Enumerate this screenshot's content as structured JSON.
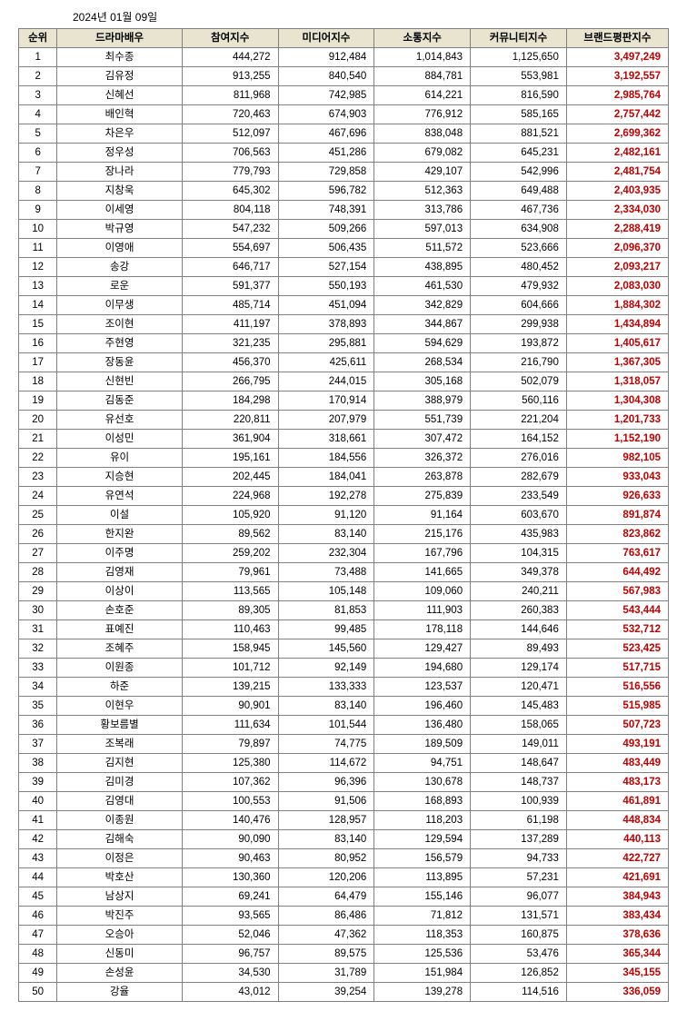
{
  "date": "2024년 01월 09일",
  "headers": {
    "rank": "순위",
    "name": "드라마배우",
    "col1": "참여지수",
    "col2": "미디어지수",
    "col3": "소통지수",
    "col4": "커뮤니티지수",
    "col5": "브랜드평판지수"
  },
  "rows": [
    {
      "rank": 1,
      "name": "최수종",
      "c1": "444,272",
      "c2": "912,484",
      "c3": "1,014,843",
      "c4": "1,125,650",
      "c5": "3,497,249"
    },
    {
      "rank": 2,
      "name": "김유정",
      "c1": "913,255",
      "c2": "840,540",
      "c3": "884,781",
      "c4": "553,981",
      "c5": "3,192,557"
    },
    {
      "rank": 3,
      "name": "신혜선",
      "c1": "811,968",
      "c2": "742,985",
      "c3": "614,221",
      "c4": "816,590",
      "c5": "2,985,764"
    },
    {
      "rank": 4,
      "name": "배인혁",
      "c1": "720,463",
      "c2": "674,903",
      "c3": "776,912",
      "c4": "585,165",
      "c5": "2,757,442"
    },
    {
      "rank": 5,
      "name": "차은우",
      "c1": "512,097",
      "c2": "467,696",
      "c3": "838,048",
      "c4": "881,521",
      "c5": "2,699,362"
    },
    {
      "rank": 6,
      "name": "정우성",
      "c1": "706,563",
      "c2": "451,286",
      "c3": "679,082",
      "c4": "645,231",
      "c5": "2,482,161"
    },
    {
      "rank": 7,
      "name": "장나라",
      "c1": "779,793",
      "c2": "729,858",
      "c3": "429,107",
      "c4": "542,996",
      "c5": "2,481,754"
    },
    {
      "rank": 8,
      "name": "지창욱",
      "c1": "645,302",
      "c2": "596,782",
      "c3": "512,363",
      "c4": "649,488",
      "c5": "2,403,935"
    },
    {
      "rank": 9,
      "name": "이세영",
      "c1": "804,118",
      "c2": "748,391",
      "c3": "313,786",
      "c4": "467,736",
      "c5": "2,334,030"
    },
    {
      "rank": 10,
      "name": "박규영",
      "c1": "547,232",
      "c2": "509,266",
      "c3": "597,013",
      "c4": "634,908",
      "c5": "2,288,419"
    },
    {
      "rank": 11,
      "name": "이영애",
      "c1": "554,697",
      "c2": "506,435",
      "c3": "511,572",
      "c4": "523,666",
      "c5": "2,096,370"
    },
    {
      "rank": 12,
      "name": "송강",
      "c1": "646,717",
      "c2": "527,154",
      "c3": "438,895",
      "c4": "480,452",
      "c5": "2,093,217"
    },
    {
      "rank": 13,
      "name": "로운",
      "c1": "591,377",
      "c2": "550,193",
      "c3": "461,530",
      "c4": "479,932",
      "c5": "2,083,030"
    },
    {
      "rank": 14,
      "name": "이무생",
      "c1": "485,714",
      "c2": "451,094",
      "c3": "342,829",
      "c4": "604,666",
      "c5": "1,884,302"
    },
    {
      "rank": 15,
      "name": "조이현",
      "c1": "411,197",
      "c2": "378,893",
      "c3": "344,867",
      "c4": "299,938",
      "c5": "1,434,894"
    },
    {
      "rank": 16,
      "name": "주현영",
      "c1": "321,235",
      "c2": "295,881",
      "c3": "594,629",
      "c4": "193,872",
      "c5": "1,405,617"
    },
    {
      "rank": 17,
      "name": "장동윤",
      "c1": "456,370",
      "c2": "425,611",
      "c3": "268,534",
      "c4": "216,790",
      "c5": "1,367,305"
    },
    {
      "rank": 18,
      "name": "신현빈",
      "c1": "266,795",
      "c2": "244,015",
      "c3": "305,168",
      "c4": "502,079",
      "c5": "1,318,057"
    },
    {
      "rank": 19,
      "name": "김동준",
      "c1": "184,298",
      "c2": "170,914",
      "c3": "388,979",
      "c4": "560,116",
      "c5": "1,304,308"
    },
    {
      "rank": 20,
      "name": "유선호",
      "c1": "220,811",
      "c2": "207,979",
      "c3": "551,739",
      "c4": "221,204",
      "c5": "1,201,733"
    },
    {
      "rank": 21,
      "name": "이성민",
      "c1": "361,904",
      "c2": "318,661",
      "c3": "307,472",
      "c4": "164,152",
      "c5": "1,152,190"
    },
    {
      "rank": 22,
      "name": "유이",
      "c1": "195,161",
      "c2": "184,556",
      "c3": "326,372",
      "c4": "276,016",
      "c5": "982,105"
    },
    {
      "rank": 23,
      "name": "지승현",
      "c1": "202,445",
      "c2": "184,041",
      "c3": "263,878",
      "c4": "282,679",
      "c5": "933,043"
    },
    {
      "rank": 24,
      "name": "유연석",
      "c1": "224,968",
      "c2": "192,278",
      "c3": "275,839",
      "c4": "233,549",
      "c5": "926,633"
    },
    {
      "rank": 25,
      "name": "이설",
      "c1": "105,920",
      "c2": "91,120",
      "c3": "91,164",
      "c4": "603,670",
      "c5": "891,874"
    },
    {
      "rank": 26,
      "name": "한지완",
      "c1": "89,562",
      "c2": "83,140",
      "c3": "215,176",
      "c4": "435,983",
      "c5": "823,862"
    },
    {
      "rank": 27,
      "name": "이주명",
      "c1": "259,202",
      "c2": "232,304",
      "c3": "167,796",
      "c4": "104,315",
      "c5": "763,617"
    },
    {
      "rank": 28,
      "name": "김영재",
      "c1": "79,961",
      "c2": "73,488",
      "c3": "141,665",
      "c4": "349,378",
      "c5": "644,492"
    },
    {
      "rank": 29,
      "name": "이상이",
      "c1": "113,565",
      "c2": "105,148",
      "c3": "109,060",
      "c4": "240,211",
      "c5": "567,983"
    },
    {
      "rank": 30,
      "name": "손호준",
      "c1": "89,305",
      "c2": "81,853",
      "c3": "111,903",
      "c4": "260,383",
      "c5": "543,444"
    },
    {
      "rank": 31,
      "name": "표예진",
      "c1": "110,463",
      "c2": "99,485",
      "c3": "178,118",
      "c4": "144,646",
      "c5": "532,712"
    },
    {
      "rank": 32,
      "name": "조혜주",
      "c1": "158,945",
      "c2": "145,560",
      "c3": "129,427",
      "c4": "89,493",
      "c5": "523,425"
    },
    {
      "rank": 33,
      "name": "이원종",
      "c1": "101,712",
      "c2": "92,149",
      "c3": "194,680",
      "c4": "129,174",
      "c5": "517,715"
    },
    {
      "rank": 34,
      "name": "하준",
      "c1": "139,215",
      "c2": "133,333",
      "c3": "123,537",
      "c4": "120,471",
      "c5": "516,556"
    },
    {
      "rank": 35,
      "name": "이현우",
      "c1": "90,901",
      "c2": "83,140",
      "c3": "196,460",
      "c4": "145,483",
      "c5": "515,985"
    },
    {
      "rank": 36,
      "name": "황보름별",
      "c1": "111,634",
      "c2": "101,544",
      "c3": "136,480",
      "c4": "158,065",
      "c5": "507,723"
    },
    {
      "rank": 37,
      "name": "조복래",
      "c1": "79,897",
      "c2": "74,775",
      "c3": "189,509",
      "c4": "149,011",
      "c5": "493,191"
    },
    {
      "rank": 38,
      "name": "김지현",
      "c1": "125,380",
      "c2": "114,672",
      "c3": "94,751",
      "c4": "148,647",
      "c5": "483,449"
    },
    {
      "rank": 39,
      "name": "김미경",
      "c1": "107,362",
      "c2": "96,396",
      "c3": "130,678",
      "c4": "148,737",
      "c5": "483,173"
    },
    {
      "rank": 40,
      "name": "김영대",
      "c1": "100,553",
      "c2": "91,506",
      "c3": "168,893",
      "c4": "100,939",
      "c5": "461,891"
    },
    {
      "rank": 41,
      "name": "이종원",
      "c1": "140,476",
      "c2": "128,957",
      "c3": "118,203",
      "c4": "61,198",
      "c5": "448,834"
    },
    {
      "rank": 42,
      "name": "김해숙",
      "c1": "90,090",
      "c2": "83,140",
      "c3": "129,594",
      "c4": "137,289",
      "c5": "440,113"
    },
    {
      "rank": 43,
      "name": "이정은",
      "c1": "90,463",
      "c2": "80,952",
      "c3": "156,579",
      "c4": "94,733",
      "c5": "422,727"
    },
    {
      "rank": 44,
      "name": "박호산",
      "c1": "130,360",
      "c2": "120,206",
      "c3": "113,895",
      "c4": "57,231",
      "c5": "421,691"
    },
    {
      "rank": 45,
      "name": "남상지",
      "c1": "69,241",
      "c2": "64,479",
      "c3": "155,146",
      "c4": "96,077",
      "c5": "384,943"
    },
    {
      "rank": 46,
      "name": "박진주",
      "c1": "93,565",
      "c2": "86,486",
      "c3": "71,812",
      "c4": "131,571",
      "c5": "383,434"
    },
    {
      "rank": 47,
      "name": "오승아",
      "c1": "52,046",
      "c2": "47,362",
      "c3": "118,353",
      "c4": "160,875",
      "c5": "378,636"
    },
    {
      "rank": 48,
      "name": "신동미",
      "c1": "96,757",
      "c2": "89,575",
      "c3": "125,536",
      "c4": "53,476",
      "c5": "365,344"
    },
    {
      "rank": 49,
      "name": "손성윤",
      "c1": "34,530",
      "c2": "31,789",
      "c3": "151,984",
      "c4": "126,852",
      "c5": "345,155"
    },
    {
      "rank": 50,
      "name": "강율",
      "c1": "43,012",
      "c2": "39,254",
      "c3": "139,278",
      "c4": "114,516",
      "c5": "336,059"
    }
  ]
}
